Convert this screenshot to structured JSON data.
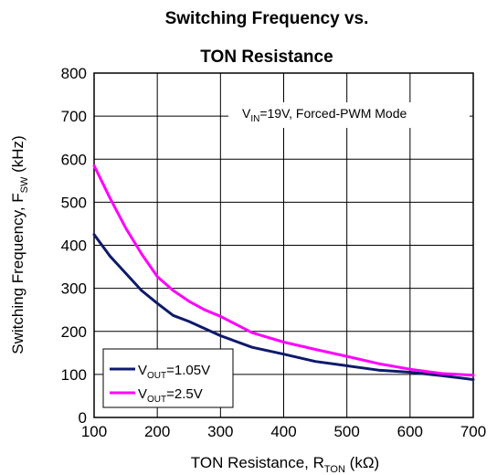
{
  "chart_data": {
    "type": "line",
    "title_line1": "Switching Frequency vs.",
    "title_line2": "TON Resistance",
    "xlabel_main": "TON Resistance, R",
    "xlabel_sub": "TON",
    "xlabel_unit": "  (kΩ)",
    "ylabel_main": "Switching Frequency, F",
    "ylabel_sub": "SW",
    "ylabel_unit": " (kHz)",
    "xlim": [
      100,
      700
    ],
    "ylim": [
      0,
      800
    ],
    "xticks": [
      100,
      200,
      300,
      400,
      500,
      600,
      700
    ],
    "yticks": [
      0,
      100,
      200,
      300,
      400,
      500,
      600,
      700,
      800
    ],
    "grid": true,
    "annotation": {
      "pre": "V",
      "sub": "IN",
      "post": "=19V, Forced-PWM Mode"
    },
    "legend_position": "bottom-left",
    "series": [
      {
        "name": "V_OUT=1.05V",
        "label_pre": "V",
        "label_sub": "OUT",
        "label_post": "=1.05V",
        "color": "#0d1a6b",
        "x": [
          100,
          125,
          150,
          175,
          200,
          225,
          250,
          300,
          350,
          400,
          450,
          500,
          550,
          600,
          650,
          700
        ],
        "y": [
          425,
          375,
          335,
          295,
          265,
          237,
          223,
          190,
          163,
          147,
          130,
          120,
          110,
          105,
          97,
          88
        ]
      },
      {
        "name": "V_OUT=2.5V",
        "label_pre": "V",
        "label_sub": "OUT",
        "label_post": "=2.5V",
        "color": "#ff00ff",
        "x": [
          100,
          125,
          150,
          175,
          200,
          225,
          250,
          275,
          300,
          350,
          400,
          450,
          500,
          550,
          600,
          650,
          700
        ],
        "y": [
          585,
          510,
          440,
          380,
          327,
          295,
          270,
          250,
          235,
          197,
          175,
          158,
          142,
          125,
          112,
          102,
          98
        ]
      }
    ]
  }
}
